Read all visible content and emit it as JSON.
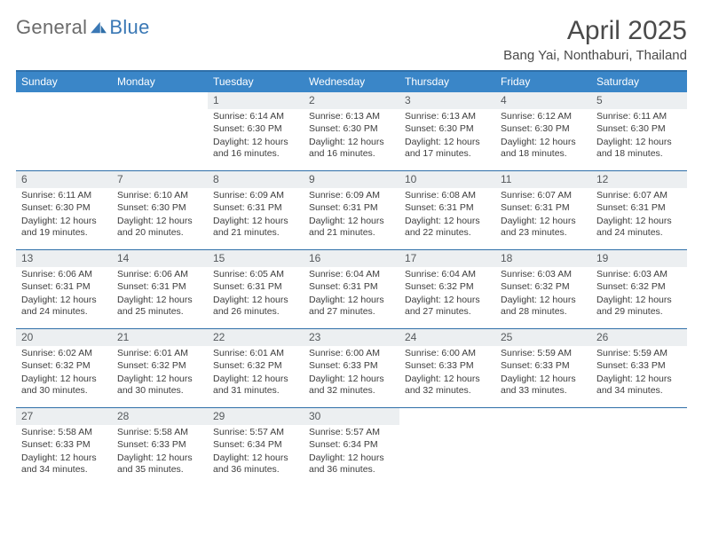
{
  "logo": {
    "text_general": "General",
    "text_blue": "Blue"
  },
  "title": "April 2025",
  "location": "Bang Yai, Nonthaburi, Thailand",
  "colors": {
    "header_bar": "#3a86c8",
    "header_rule": "#2f6fa8",
    "daynum_bg": "#eceff1",
    "text": "#3d3d3d",
    "logo_grey": "#6b6b6b",
    "logo_blue": "#3a78b5"
  },
  "typography": {
    "title_fontsize": 30,
    "location_fontsize": 15,
    "dayname_fontsize": 12,
    "daynum_fontsize": 12,
    "body_fontsize": 10.5
  },
  "layout": {
    "cols": 7,
    "rows": 5,
    "cell_min_height": 88
  },
  "daynames": [
    "Sunday",
    "Monday",
    "Tuesday",
    "Wednesday",
    "Thursday",
    "Friday",
    "Saturday"
  ],
  "weeks": [
    [
      null,
      null,
      {
        "n": "1",
        "sr": "6:14 AM",
        "ss": "6:30 PM",
        "dl": "12 hours and 16 minutes."
      },
      {
        "n": "2",
        "sr": "6:13 AM",
        "ss": "6:30 PM",
        "dl": "12 hours and 16 minutes."
      },
      {
        "n": "3",
        "sr": "6:13 AM",
        "ss": "6:30 PM",
        "dl": "12 hours and 17 minutes."
      },
      {
        "n": "4",
        "sr": "6:12 AM",
        "ss": "6:30 PM",
        "dl": "12 hours and 18 minutes."
      },
      {
        "n": "5",
        "sr": "6:11 AM",
        "ss": "6:30 PM",
        "dl": "12 hours and 18 minutes."
      }
    ],
    [
      {
        "n": "6",
        "sr": "6:11 AM",
        "ss": "6:30 PM",
        "dl": "12 hours and 19 minutes."
      },
      {
        "n": "7",
        "sr": "6:10 AM",
        "ss": "6:30 PM",
        "dl": "12 hours and 20 minutes."
      },
      {
        "n": "8",
        "sr": "6:09 AM",
        "ss": "6:31 PM",
        "dl": "12 hours and 21 minutes."
      },
      {
        "n": "9",
        "sr": "6:09 AM",
        "ss": "6:31 PM",
        "dl": "12 hours and 21 minutes."
      },
      {
        "n": "10",
        "sr": "6:08 AM",
        "ss": "6:31 PM",
        "dl": "12 hours and 22 minutes."
      },
      {
        "n": "11",
        "sr": "6:07 AM",
        "ss": "6:31 PM",
        "dl": "12 hours and 23 minutes."
      },
      {
        "n": "12",
        "sr": "6:07 AM",
        "ss": "6:31 PM",
        "dl": "12 hours and 24 minutes."
      }
    ],
    [
      {
        "n": "13",
        "sr": "6:06 AM",
        "ss": "6:31 PM",
        "dl": "12 hours and 24 minutes."
      },
      {
        "n": "14",
        "sr": "6:06 AM",
        "ss": "6:31 PM",
        "dl": "12 hours and 25 minutes."
      },
      {
        "n": "15",
        "sr": "6:05 AM",
        "ss": "6:31 PM",
        "dl": "12 hours and 26 minutes."
      },
      {
        "n": "16",
        "sr": "6:04 AM",
        "ss": "6:31 PM",
        "dl": "12 hours and 27 minutes."
      },
      {
        "n": "17",
        "sr": "6:04 AM",
        "ss": "6:32 PM",
        "dl": "12 hours and 27 minutes."
      },
      {
        "n": "18",
        "sr": "6:03 AM",
        "ss": "6:32 PM",
        "dl": "12 hours and 28 minutes."
      },
      {
        "n": "19",
        "sr": "6:03 AM",
        "ss": "6:32 PM",
        "dl": "12 hours and 29 minutes."
      }
    ],
    [
      {
        "n": "20",
        "sr": "6:02 AM",
        "ss": "6:32 PM",
        "dl": "12 hours and 30 minutes."
      },
      {
        "n": "21",
        "sr": "6:01 AM",
        "ss": "6:32 PM",
        "dl": "12 hours and 30 minutes."
      },
      {
        "n": "22",
        "sr": "6:01 AM",
        "ss": "6:32 PM",
        "dl": "12 hours and 31 minutes."
      },
      {
        "n": "23",
        "sr": "6:00 AM",
        "ss": "6:33 PM",
        "dl": "12 hours and 32 minutes."
      },
      {
        "n": "24",
        "sr": "6:00 AM",
        "ss": "6:33 PM",
        "dl": "12 hours and 32 minutes."
      },
      {
        "n": "25",
        "sr": "5:59 AM",
        "ss": "6:33 PM",
        "dl": "12 hours and 33 minutes."
      },
      {
        "n": "26",
        "sr": "5:59 AM",
        "ss": "6:33 PM",
        "dl": "12 hours and 34 minutes."
      }
    ],
    [
      {
        "n": "27",
        "sr": "5:58 AM",
        "ss": "6:33 PM",
        "dl": "12 hours and 34 minutes."
      },
      {
        "n": "28",
        "sr": "5:58 AM",
        "ss": "6:33 PM",
        "dl": "12 hours and 35 minutes."
      },
      {
        "n": "29",
        "sr": "5:57 AM",
        "ss": "6:34 PM",
        "dl": "12 hours and 36 minutes."
      },
      {
        "n": "30",
        "sr": "5:57 AM",
        "ss": "6:34 PM",
        "dl": "12 hours and 36 minutes."
      },
      null,
      null,
      null
    ]
  ],
  "labels": {
    "sunrise": "Sunrise: ",
    "sunset": "Sunset: ",
    "daylight": "Daylight: "
  }
}
